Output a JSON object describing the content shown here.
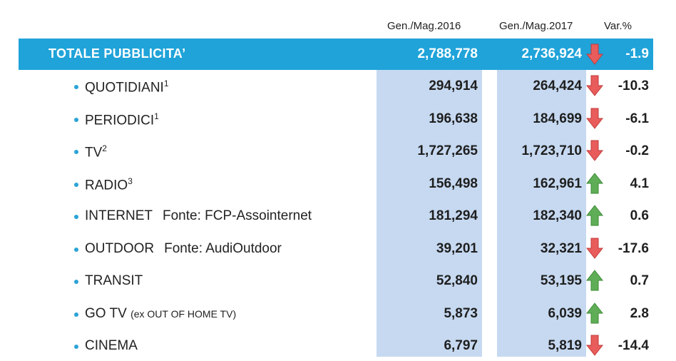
{
  "headers": {
    "col1": "Gen./Mag.2016",
    "col2": "Gen./Mag.2017",
    "col3": "Var.%"
  },
  "total": {
    "label": "TOTALE PUBBLICITA’",
    "v2016": "2,788,778",
    "v2017": "2,736,924",
    "trend": "down",
    "var": "-1.9"
  },
  "rows": [
    {
      "name": "QUOTIDIANI",
      "sup": "1",
      "note": "",
      "source": "",
      "v2016": "294,914",
      "v2017": "264,424",
      "trend": "down",
      "var": "-10.3"
    },
    {
      "name": "PERIODICI",
      "sup": "1",
      "note": "",
      "source": "",
      "v2016": "196,638",
      "v2017": "184,699",
      "trend": "down",
      "var": "-6.1"
    },
    {
      "name": "TV",
      "sup": "2",
      "note": "",
      "source": "",
      "v2016": "1,727,265",
      "v2017": "1,723,710",
      "trend": "down",
      "var": "-0.2"
    },
    {
      "name": "RADIO",
      "sup": "3",
      "note": "",
      "source": "",
      "v2016": "156,498",
      "v2017": "162,961",
      "trend": "up",
      "var": "4.1"
    },
    {
      "name": "INTERNET",
      "sup": "",
      "note": "",
      "source": "Fonte: FCP-Assointernet",
      "v2016": "181,294",
      "v2017": "182,340",
      "trend": "up",
      "var": "0.6"
    },
    {
      "name": "OUTDOOR",
      "sup": "",
      "note": "",
      "source": "Fonte: AudiOutdoor",
      "v2016": "39,201",
      "v2017": "32,321",
      "trend": "down",
      "var": "-17.6"
    },
    {
      "name": "TRANSIT",
      "sup": "",
      "note": "",
      "source": "",
      "v2016": "52,840",
      "v2017": "53,195",
      "trend": "up",
      "var": "0.7"
    },
    {
      "name": "GO TV",
      "sup": "",
      "note": "(ex OUT OF HOME TV)",
      "source": "",
      "v2016": "5,873",
      "v2017": "6,039",
      "trend": "up",
      "var": "2.8"
    },
    {
      "name": "CINEMA",
      "sup": "",
      "note": "",
      "source": "",
      "v2016": "6,797",
      "v2017": "5,819",
      "trend": "down",
      "var": "-14.4"
    }
  ],
  "colors": {
    "header_bar": "#1fa3d9",
    "column_shade": "#c6d9f1",
    "arrow_down": "#e85c5c",
    "arrow_up": "#5fae57",
    "bullet": "#2aa3d6"
  }
}
